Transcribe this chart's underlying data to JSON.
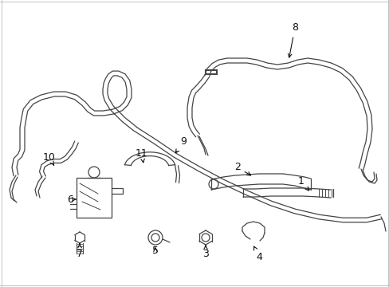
{
  "bg_color": "#ffffff",
  "line_color": "#444444",
  "fig_width": 4.89,
  "fig_height": 3.6,
  "dpi": 100,
  "font_size": 9,
  "border_color": "#aaaaaa"
}
